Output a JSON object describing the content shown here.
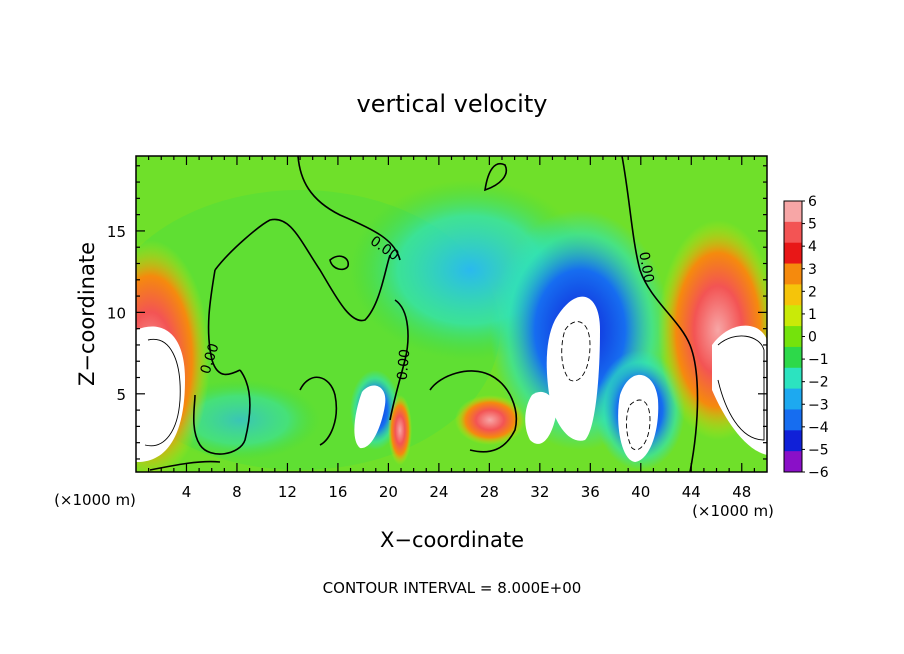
{
  "chart_data": {
    "type": "heatmap",
    "title": "vertical velocity",
    "xlabel": "X−coordinate",
    "ylabel": "Z−coordinate",
    "x_unit_left": "(×1000 m)",
    "x_unit_right": "(×1000 m)",
    "xlim": [
      0,
      50
    ],
    "ylim": [
      0.2,
      19.6
    ],
    "xticks": [
      "4",
      "8",
      "12",
      "16",
      "20",
      "24",
      "28",
      "32",
      "36",
      "40",
      "44",
      "48"
    ],
    "yticks": [
      "5",
      "10",
      "15"
    ],
    "colorbar_ticks": [
      "6",
      "5",
      "4",
      "3",
      "2",
      "1",
      "0",
      "−1",
      "−2",
      "−3",
      "−4",
      "−5",
      "−6"
    ],
    "colorbar_colors": [
      "#f7a6a6",
      "#f35454",
      "#e81717",
      "#f58a0d",
      "#f5c40a",
      "#c9ea08",
      "#74e30c",
      "#2dd94a",
      "#2ce3c0",
      "#1da9f0",
      "#166df0",
      "#1020d8",
      "#8a10c8"
    ],
    "contour_labels": [
      "0.00",
      "0.00",
      "0.00",
      "0.00"
    ],
    "contour_note": "CONTOUR INTERVAL = 8.000E+00"
  }
}
